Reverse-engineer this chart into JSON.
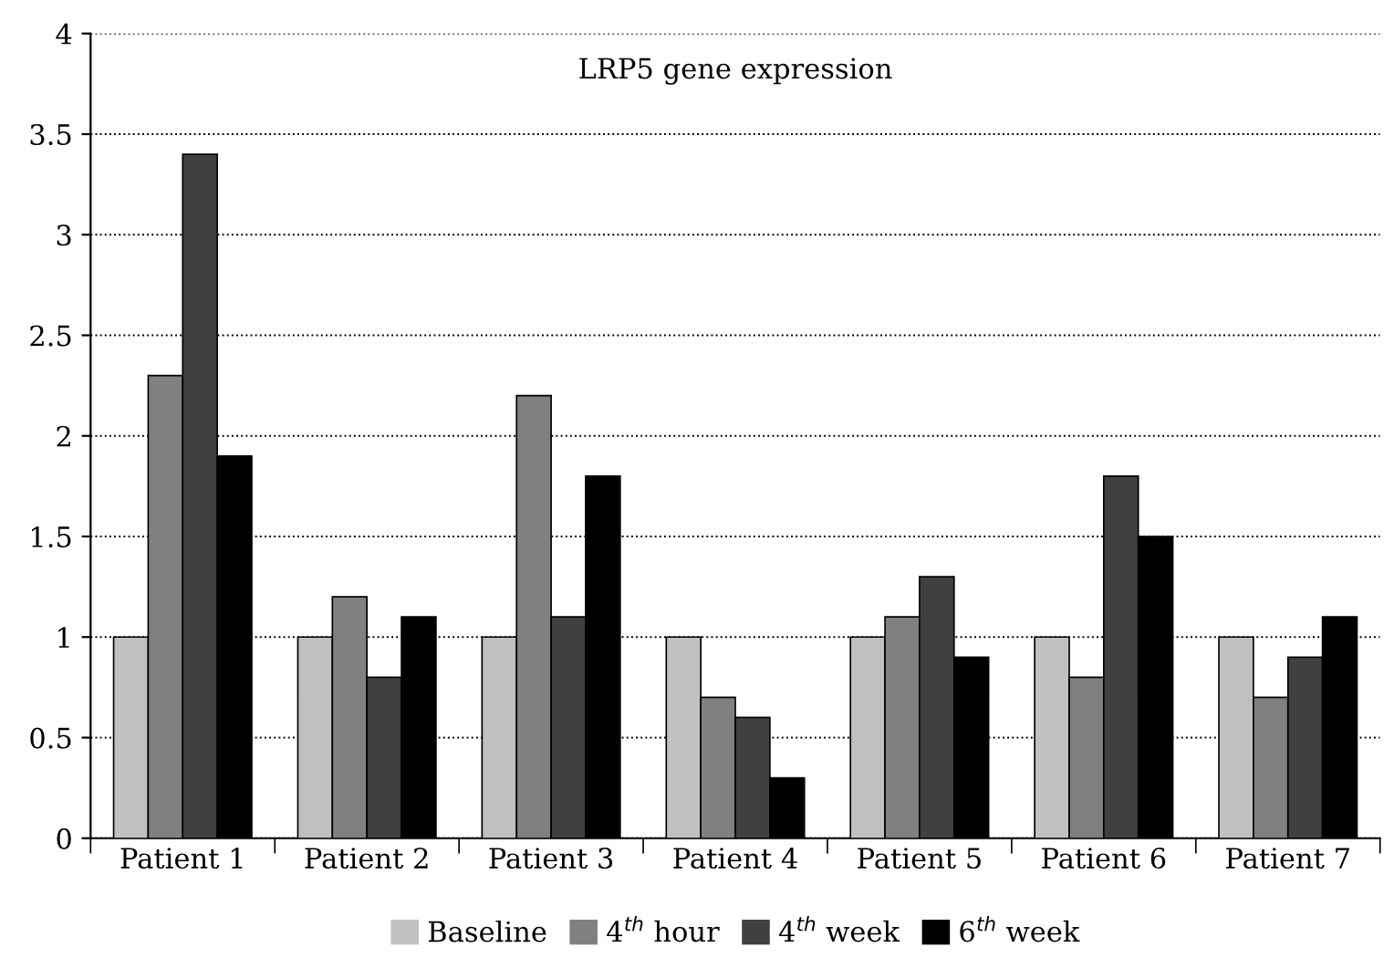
{
  "chart_data": {
    "type": "bar",
    "title": "LRP5 gene expression",
    "categories": [
      "Patient 1",
      "Patient 2",
      "Patient 3",
      "Patient 4",
      "Patient 5",
      "Patient 6",
      "Patient 7"
    ],
    "series": [
      {
        "name": "Baseline",
        "color": "#c0c0c0",
        "values": [
          1,
          1,
          1,
          1,
          1,
          1,
          1
        ]
      },
      {
        "name": "4$^{th}$ hour",
        "color": "#808080",
        "values": [
          2.3,
          1.2,
          2.2,
          0.7,
          1.1,
          0.8,
          0.7
        ]
      },
      {
        "name": "4$^{th}$ week",
        "color": "#404040",
        "values": [
          3.4,
          0.8,
          1.1,
          0.6,
          1.3,
          1.8,
          0.9
        ]
      },
      {
        "name": "6$^{th}$ week",
        "color": "#000000",
        "values": [
          1.9,
          1.1,
          1.8,
          0.3,
          0.9,
          1.5,
          1.1
        ]
      }
    ],
    "ylim": [
      0,
      4
    ],
    "yticks": [
      0,
      0.5,
      1,
      1.5,
      2,
      2.5,
      3,
      3.5,
      4
    ],
    "grid": "y",
    "legend": "bottom"
  }
}
